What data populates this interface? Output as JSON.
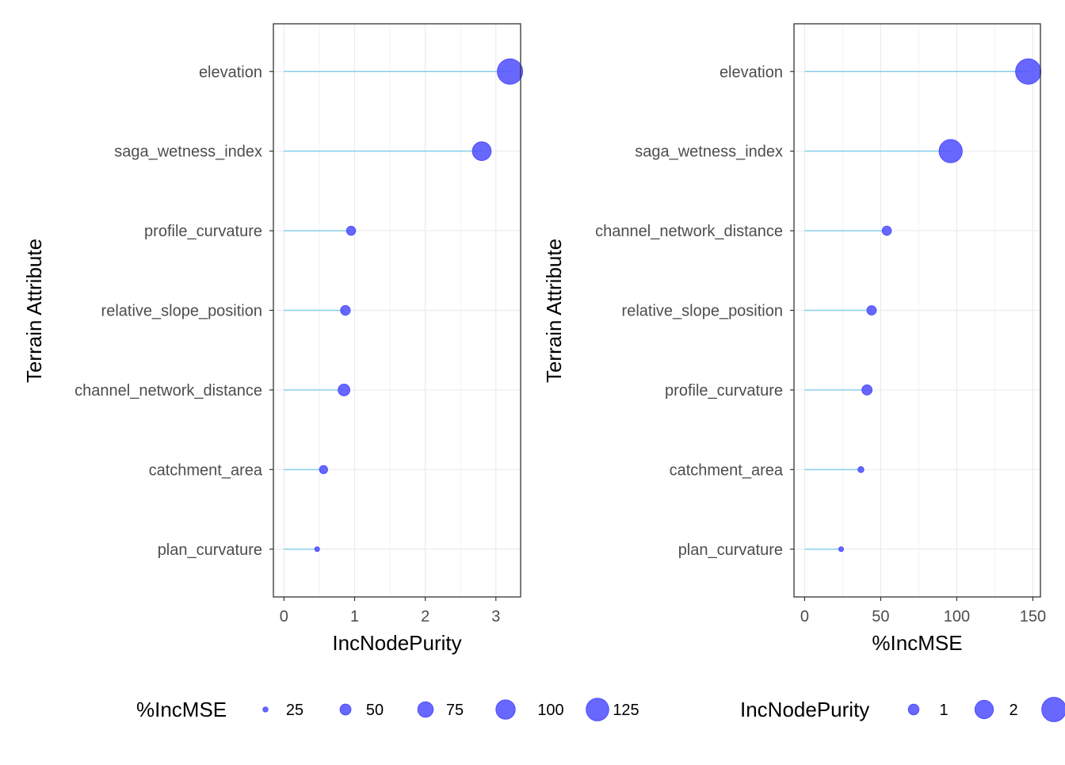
{
  "chart_data": [
    {
      "type": "lollipop",
      "xlabel": "IncNodePurity",
      "ylabel": "Terrain Attribute",
      "xlim": [
        -0.15,
        3.35
      ],
      "xticks": [
        "0",
        "1",
        "2",
        "3"
      ],
      "xtick_values": [
        0,
        1,
        2,
        3
      ],
      "categories": [
        "elevation",
        "saga_wetness_index",
        "profile_curvature",
        "relative_slope_position",
        "channel_network_distance",
        "catchment_area",
        "plan_curvature"
      ],
      "values": [
        3.2,
        2.8,
        0.95,
        0.87,
        0.85,
        0.56,
        0.47
      ],
      "size_values": [
        147,
        96,
        41,
        44,
        54,
        37,
        24
      ],
      "stem_color": "#87ceeb",
      "point_color": "#4d4dff",
      "grid": true,
      "legend": {
        "position": "bottom",
        "title": "%IncMSE",
        "keys": [
          {
            "label": "25",
            "value": 25
          },
          {
            "label": "50",
            "value": 50
          },
          {
            "label": "75",
            "value": 75
          },
          {
            "label": "100",
            "value": 100
          },
          {
            "label": "125",
            "value": 125
          }
        ]
      }
    },
    {
      "type": "lollipop",
      "xlabel": "%IncMSE",
      "ylabel": "Terrain Attribute",
      "xlim": [
        -7,
        155
      ],
      "xticks": [
        "0",
        "50",
        "100",
        "150"
      ],
      "xtick_values": [
        0,
        50,
        100,
        150
      ],
      "categories": [
        "elevation",
        "saga_wetness_index",
        "channel_network_distance",
        "relative_slope_position",
        "profile_curvature",
        "catchment_area",
        "plan_curvature"
      ],
      "values": [
        147,
        96,
        54,
        44,
        41,
        37,
        24
      ],
      "size_values": [
        3.2,
        2.8,
        0.85,
        0.87,
        0.95,
        0.56,
        0.47
      ],
      "stem_color": "#87ceeb",
      "point_color": "#4d4dff",
      "grid": true,
      "legend": {
        "position": "bottom",
        "title": "IncNodePurity",
        "keys": [
          {
            "label": "1",
            "value": 1
          },
          {
            "label": "2",
            "value": 2
          },
          {
            "label": "",
            "value": 3
          }
        ]
      }
    }
  ]
}
